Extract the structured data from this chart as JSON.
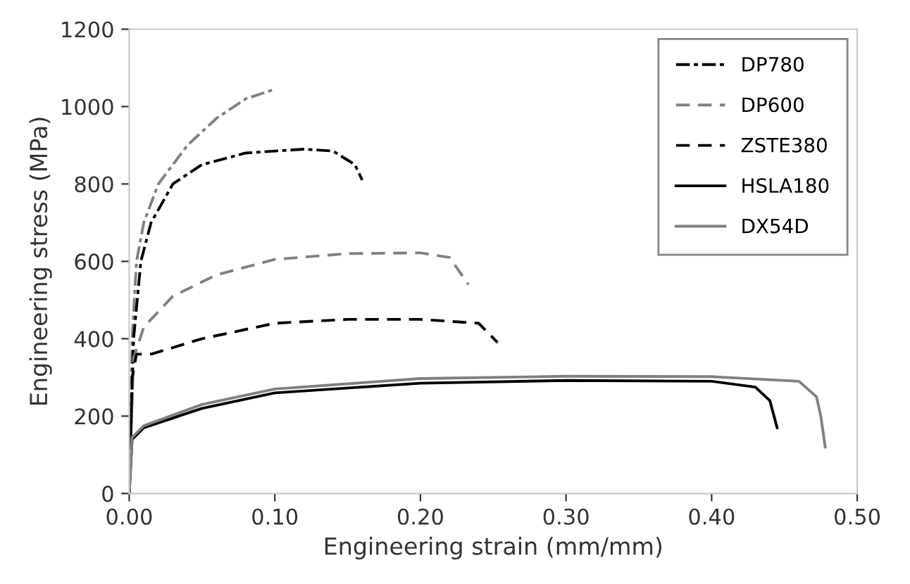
{
  "chart_data": {
    "type": "line",
    "xlabel": "Engineering strain (mm/mm)",
    "ylabel": "Engineering stress (MPa)",
    "xlim": [
      0,
      0.5
    ],
    "xticks": [
      {
        "value": 0,
        "label": "0.00"
      },
      {
        "value": 0.1,
        "label": "0.10"
      },
      {
        "value": 0.2,
        "label": "0.20"
      },
      {
        "value": 0.3,
        "label": "0.30"
      },
      {
        "value": 0.4,
        "label": "0.40"
      },
      {
        "value": 0.5,
        "label": "0.50"
      }
    ],
    "ylim": [
      0,
      1200
    ],
    "yticks": [
      0,
      200,
      400,
      600,
      800,
      1000,
      1200
    ],
    "grid": false,
    "legend": "top right",
    "marker": "none",
    "series": [
      {
        "color": "#808080",
        "line_style": "dashdot",
        "x": [
          0,
          0.002,
          0.005,
          0.01,
          0.02,
          0.04,
          0.06,
          0.08,
          0.1
        ],
        "values": [
          0,
          400,
          600,
          700,
          800,
          900,
          970,
          1020,
          1045
        ]
      },
      {
        "name": "DP780",
        "color": "#000000",
        "line_style": "dashdot",
        "x": [
          0,
          0.003,
          0.008,
          0.015,
          0.03,
          0.05,
          0.08,
          0.12,
          0.14,
          0.155,
          0.16
        ],
        "values": [
          0,
          400,
          600,
          700,
          800,
          850,
          880,
          890,
          885,
          850,
          810
        ]
      },
      {
        "name": "DP600",
        "color": "#808080",
        "line_style": "dashed",
        "x": [
          0,
          0.003,
          0.01,
          0.03,
          0.06,
          0.1,
          0.15,
          0.2,
          0.22,
          0.233
        ],
        "values": [
          0,
          350,
          430,
          510,
          565,
          605,
          620,
          622,
          610,
          540
        ]
      },
      {
        "name": "ZSTE380",
        "color": "#000000",
        "line_style": "dashed",
        "x": [
          0,
          0.002,
          0.005,
          0.015,
          0.05,
          0.1,
          0.15,
          0.2,
          0.24,
          0.253
        ],
        "values": [
          0,
          300,
          360,
          360,
          400,
          440,
          450,
          450,
          440,
          390
        ]
      },
      {
        "name": "HSLA180",
        "color": "#000000",
        "line_style": "solid",
        "x": [
          0,
          0.002,
          0.01,
          0.05,
          0.1,
          0.2,
          0.3,
          0.4,
          0.43,
          0.44,
          0.445
        ],
        "values": [
          0,
          140,
          170,
          220,
          260,
          285,
          292,
          290,
          275,
          240,
          170
        ]
      },
      {
        "name": "DX54D",
        "color": "#808080",
        "line_style": "solid",
        "x": [
          0,
          0.002,
          0.01,
          0.05,
          0.1,
          0.2,
          0.3,
          0.4,
          0.46,
          0.472,
          0.475,
          0.478
        ],
        "values": [
          0,
          145,
          175,
          230,
          270,
          297,
          303,
          302,
          290,
          250,
          200,
          120
        ]
      }
    ]
  }
}
